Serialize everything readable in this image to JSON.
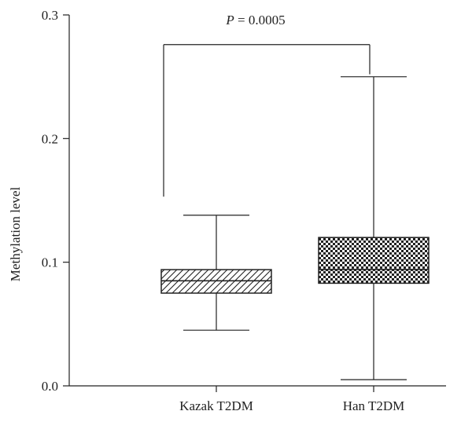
{
  "chart_data": {
    "type": "box",
    "ylabel": "Methylation level",
    "xlabel": "",
    "ylim": [
      0,
      0.3
    ],
    "yticks": [
      "0.0",
      "0.1",
      "0.2",
      "0.3"
    ],
    "grid": false,
    "categories": [
      "Kazak T2DM",
      "Han T2DM"
    ],
    "boxes": [
      {
        "category": "Kazak T2DM",
        "min": 0.045,
        "q1": 0.075,
        "median": 0.085,
        "q3": 0.094,
        "max": 0.138,
        "pattern": "diagonal-hatch"
      },
      {
        "category": "Han T2DM",
        "min": 0.005,
        "q1": 0.083,
        "median": 0.094,
        "q3": 0.12,
        "max": 0.25,
        "pattern": "checkerboard"
      }
    ],
    "annotation": {
      "p_symbol": "P",
      "p_text": " = 0.0005",
      "bracket_y": 0.276,
      "left_drop_to": 0.153,
      "right_drop_to": 0.252
    },
    "colors": {
      "ink": "#222222",
      "background": "#ffffff"
    }
  }
}
